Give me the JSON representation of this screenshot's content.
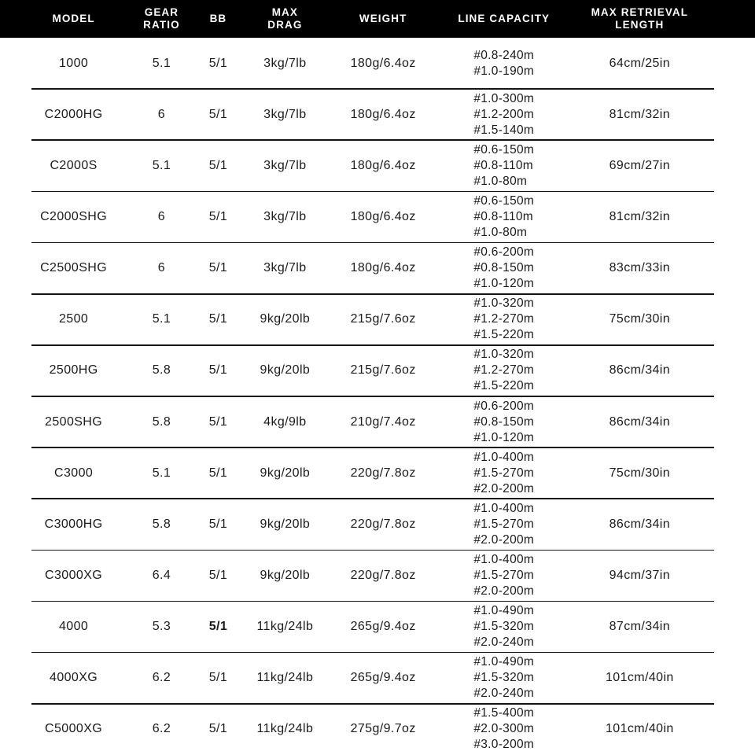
{
  "colors": {
    "header_bg": "#000000",
    "header_text": "#ffffff",
    "body_text": "#1b1b1b",
    "divider": "#141414",
    "page_bg": "#ffffff"
  },
  "table": {
    "columns": [
      {
        "id": "model",
        "label": [
          "MODEL"
        ]
      },
      {
        "id": "gear-ratio",
        "label": [
          "GEAR",
          "RATIO"
        ]
      },
      {
        "id": "bb",
        "label": [
          "BB"
        ]
      },
      {
        "id": "max-drag",
        "label": [
          "MAX",
          "DRAG"
        ]
      },
      {
        "id": "weight",
        "label": [
          "WEIGHT"
        ]
      },
      {
        "id": "line-capacity",
        "label": [
          "LINE CAPACITY"
        ]
      },
      {
        "id": "max-retrieval-length",
        "label": [
          "MAX RETRIEVAL",
          "LENGTH"
        ]
      }
    ],
    "rows": [
      {
        "model": "1000",
        "gear-ratio": "5.1",
        "bb": "5/1",
        "bb-bold": false,
        "max-drag": "3kg/7lb",
        "weight": "180g/6.4oz",
        "line-capacity": [
          "#0.8-240m",
          "#1.0-190m"
        ],
        "max-retrieval-length": "64cm/25in"
      },
      {
        "model": "C2000HG",
        "gear-ratio": "6",
        "bb": "5/1",
        "bb-bold": false,
        "max-drag": "3kg/7lb",
        "weight": "180g/6.4oz",
        "line-capacity": [
          "#1.0-300m",
          "#1.2-200m",
          "#1.5-140m"
        ],
        "max-retrieval-length": "81cm/32in"
      },
      {
        "model": "C2000S",
        "gear-ratio": "5.1",
        "bb": "5/1",
        "bb-bold": false,
        "max-drag": "3kg/7lb",
        "weight": "180g/6.4oz",
        "line-capacity": [
          "#0.6-150m",
          "#0.8-110m",
          "#1.0-80m"
        ],
        "max-retrieval-length": "69cm/27in"
      },
      {
        "model": "C2000SHG",
        "gear-ratio": "6",
        "bb": "5/1",
        "bb-bold": false,
        "max-drag": "3kg/7lb",
        "weight": "180g/6.4oz",
        "line-capacity": [
          "#0.6-150m",
          "#0.8-110m",
          "#1.0-80m"
        ],
        "max-retrieval-length": "81cm/32in"
      },
      {
        "model": "C2500SHG",
        "gear-ratio": "6",
        "bb": "5/1",
        "bb-bold": false,
        "max-drag": "3kg/7lb",
        "weight": "180g/6.4oz",
        "line-capacity": [
          "#0.6-200m",
          "#0.8-150m",
          "#1.0-120m"
        ],
        "max-retrieval-length": "83cm/33in"
      },
      {
        "model": "2500",
        "gear-ratio": "5.1",
        "bb": "5/1",
        "bb-bold": false,
        "max-drag": "9kg/20lb",
        "weight": "215g/7.6oz",
        "line-capacity": [
          "#1.0-320m",
          "#1.2-270m",
          "#1.5-220m"
        ],
        "max-retrieval-length": "75cm/30in"
      },
      {
        "model": "2500HG",
        "gear-ratio": "5.8",
        "bb": "5/1",
        "bb-bold": false,
        "max-drag": "9kg/20lb",
        "weight": "215g/7.6oz",
        "line-capacity": [
          "#1.0-320m",
          "#1.2-270m",
          "#1.5-220m"
        ],
        "max-retrieval-length": "86cm/34in"
      },
      {
        "model": "2500SHG",
        "gear-ratio": "5.8",
        "bb": "5/1",
        "bb-bold": false,
        "max-drag": "4kg/9lb",
        "weight": "210g/7.4oz",
        "line-capacity": [
          "#0.6-200m",
          "#0.8-150m",
          "#1.0-120m"
        ],
        "max-retrieval-length": "86cm/34in"
      },
      {
        "model": "C3000",
        "gear-ratio": "5.1",
        "bb": "5/1",
        "bb-bold": false,
        "max-drag": "9kg/20lb",
        "weight": "220g/7.8oz",
        "line-capacity": [
          "#1.0-400m",
          "#1.5-270m",
          "#2.0-200m"
        ],
        "max-retrieval-length": "75cm/30in"
      },
      {
        "model": "C3000HG",
        "gear-ratio": "5.8",
        "bb": "5/1",
        "bb-bold": false,
        "max-drag": "9kg/20lb",
        "weight": "220g/7.8oz",
        "line-capacity": [
          "#1.0-400m",
          "#1.5-270m",
          "#2.0-200m"
        ],
        "max-retrieval-length": "86cm/34in"
      },
      {
        "model": "C3000XG",
        "gear-ratio": "6.4",
        "bb": "5/1",
        "bb-bold": false,
        "max-drag": "9kg/20lb",
        "weight": "220g/7.8oz",
        "line-capacity": [
          "#1.0-400m",
          "#1.5-270m",
          "#2.0-200m"
        ],
        "max-retrieval-length": "94cm/37in"
      },
      {
        "model": "4000",
        "gear-ratio": "5.3",
        "bb": "5/1",
        "bb-bold": true,
        "max-drag": "11kg/24lb",
        "weight": "265g/9.4oz",
        "line-capacity": [
          "#1.0-490m",
          "#1.5-320m",
          "#2.0-240m"
        ],
        "max-retrieval-length": "87cm/34in"
      },
      {
        "model": "4000XG",
        "gear-ratio": "6.2",
        "bb": "5/1",
        "bb-bold": false,
        "max-drag": "11kg/24lb",
        "weight": "265g/9.4oz",
        "line-capacity": [
          "#1.0-490m",
          "#1.5-320m",
          "#2.0-240m"
        ],
        "max-retrieval-length": "101cm/40in"
      },
      {
        "model": "C5000XG",
        "gear-ratio": "6.2",
        "bb": "5/1",
        "bb-bold": false,
        "max-drag": "11kg/24lb",
        "weight": "275g/9.7oz",
        "line-capacity": [
          "#1.5-400m",
          "#2.0-300m",
          "#3.0-200m"
        ],
        "max-retrieval-length": "101cm/40in"
      }
    ]
  }
}
